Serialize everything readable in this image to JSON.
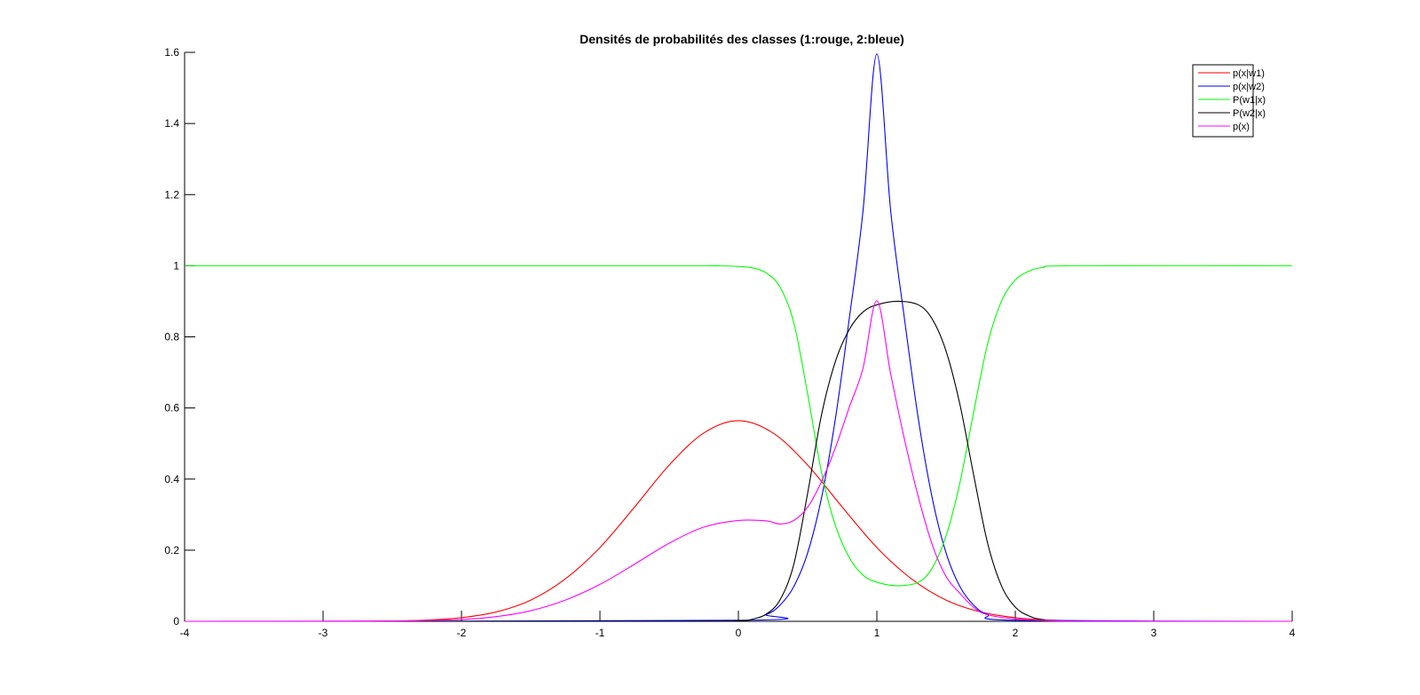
{
  "chart_data": {
    "type": "line",
    "title": "Densités de probabilités des classes (1:rouge, 2:bleue)",
    "xlabel": "",
    "ylabel": "",
    "xlim": [
      -4,
      4
    ],
    "ylim": [
      0,
      1.6
    ],
    "x_ticks": [
      "-4",
      "-3",
      "-2",
      "-1",
      "0",
      "1",
      "2",
      "3",
      "4"
    ],
    "y_ticks": [
      "0",
      "0.2",
      "0.4",
      "0.6",
      "0.8",
      "1",
      "1.2",
      "1.4",
      "1.6"
    ],
    "x_tick_values": [
      -4,
      -3,
      -2,
      -1,
      0,
      1,
      2,
      3,
      4
    ],
    "y_tick_values": [
      0,
      0.2,
      0.4,
      0.6,
      0.8,
      1,
      1.2,
      1.4,
      1.6
    ],
    "grid": false,
    "legend_position": "top-right",
    "series": [
      {
        "name": "p(x|w1)",
        "color": "#ff0000",
        "x": [
          -4.0,
          -3.5,
          -3.0,
          -2.5,
          -2.25,
          -2.0,
          -1.75,
          -1.5,
          -1.25,
          -1.0,
          -0.75,
          -0.5,
          -0.25,
          0.0,
          0.25,
          0.5,
          0.75,
          1.0,
          1.25,
          1.5,
          1.75,
          2.0,
          2.25,
          2.5,
          3.0,
          3.5,
          4.0
        ],
        "values": [
          0.0,
          0.0,
          0.0001,
          0.0011,
          0.0036,
          0.0103,
          0.0264,
          0.0597,
          0.1194,
          0.2076,
          0.3213,
          0.4394,
          0.5296,
          0.5642,
          0.5296,
          0.4394,
          0.3213,
          0.2076,
          0.1194,
          0.0597,
          0.0264,
          0.0103,
          0.0036,
          0.0011,
          0.0001,
          0.0,
          0.0
        ]
      },
      {
        "name": "p(x|w2)",
        "color": "#0000ff",
        "x": [
          -4.0,
          0.0,
          0.2,
          0.3,
          0.4,
          0.5,
          0.6,
          0.7,
          0.8,
          0.9,
          1.0,
          1.1,
          1.2,
          1.3,
          1.4,
          1.5,
          1.6,
          1.7,
          1.8,
          2.0,
          4.0
        ],
        "values": [
          0.0,
          0.0029,
          0.0192,
          0.0452,
          0.0977,
          0.1924,
          0.3467,
          0.5685,
          0.8492,
          1.154,
          1.5958,
          1.154,
          0.8492,
          0.5685,
          0.3467,
          0.1924,
          0.0977,
          0.0452,
          0.0192,
          0.0029,
          0.0
        ]
      },
      {
        "name": "P(w1|x)",
        "color": "#00ff00",
        "x": [
          -4.0,
          -0.5,
          -0.2,
          0.0,
          0.1,
          0.2,
          0.3,
          0.4,
          0.5,
          0.6,
          0.7,
          0.8,
          0.9,
          1.0,
          1.15,
          1.3,
          1.4,
          1.5,
          1.6,
          1.7,
          1.8,
          1.9,
          2.0,
          2.1,
          2.2,
          2.4,
          4.0
        ],
        "values": [
          1.0,
          1.0,
          1.0,
          0.998,
          0.994,
          0.98,
          0.94,
          0.84,
          0.64,
          0.42,
          0.27,
          0.18,
          0.13,
          0.11,
          0.1,
          0.11,
          0.15,
          0.24,
          0.39,
          0.59,
          0.78,
          0.9,
          0.96,
          0.985,
          0.995,
          1.0,
          1.0
        ]
      },
      {
        "name": "P(w2|x)",
        "color": "#000000",
        "x": [
          -4.0,
          -0.5,
          0.0,
          0.1,
          0.2,
          0.3,
          0.4,
          0.5,
          0.6,
          0.7,
          0.8,
          0.9,
          1.0,
          1.15,
          1.3,
          1.4,
          1.5,
          1.6,
          1.7,
          1.8,
          1.9,
          2.0,
          2.1,
          2.2,
          2.4,
          4.0
        ],
        "values": [
          0.0,
          0.0,
          0.002,
          0.006,
          0.02,
          0.06,
          0.16,
          0.36,
          0.58,
          0.73,
          0.82,
          0.87,
          0.89,
          0.9,
          0.89,
          0.85,
          0.76,
          0.61,
          0.41,
          0.22,
          0.1,
          0.04,
          0.015,
          0.005,
          0.0,
          0.0
        ]
      },
      {
        "name": "p(x)",
        "color": "#ff00ff",
        "x": [
          -4.0,
          -3.0,
          -2.5,
          -2.0,
          -1.75,
          -1.5,
          -1.25,
          -1.0,
          -0.75,
          -0.5,
          -0.25,
          0.0,
          0.2,
          0.3,
          0.4,
          0.5,
          0.6,
          0.7,
          0.8,
          0.9,
          1.0,
          1.1,
          1.2,
          1.3,
          1.4,
          1.5,
          1.6,
          1.7,
          1.8,
          2.0,
          2.25,
          2.5,
          3.0,
          4.0
        ],
        "values": [
          0.0,
          0.0,
          0.0006,
          0.0052,
          0.0132,
          0.0298,
          0.0597,
          0.1038,
          0.1607,
          0.2197,
          0.2648,
          0.2835,
          0.2824,
          0.2737,
          0.2836,
          0.3209,
          0.3928,
          0.4874,
          0.6011,
          0.7116,
          0.9017,
          0.6959,
          0.5112,
          0.3493,
          0.2159,
          0.126,
          0.0787,
          0.0389,
          0.0184,
          0.0066,
          0.0018,
          0.0005,
          0.0,
          0.0
        ]
      }
    ]
  }
}
